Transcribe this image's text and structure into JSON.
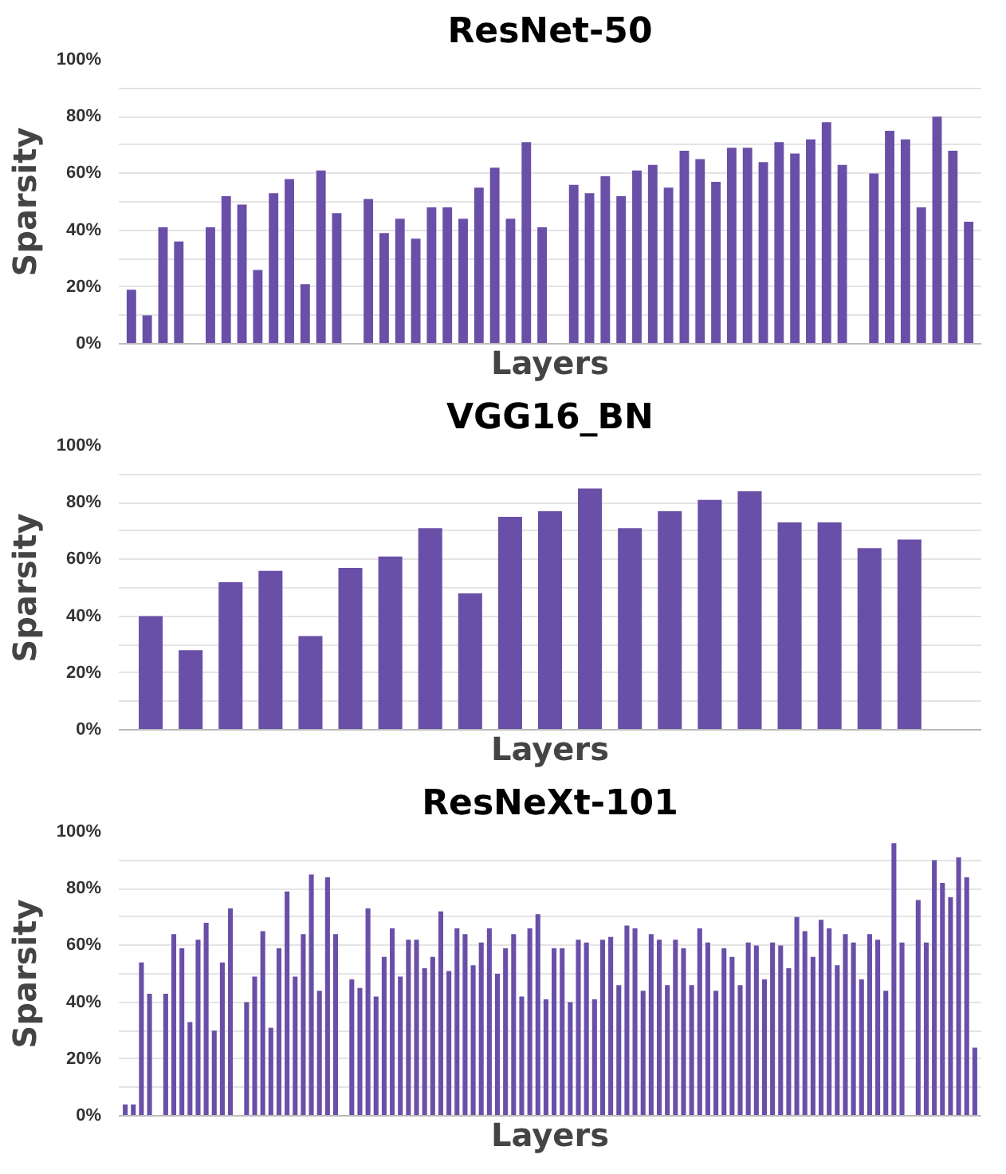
{
  "chart_data": [
    {
      "type": "bar",
      "title": "ResNet-50",
      "xlabel": "Layers",
      "ylabel": "Sparsity",
      "color": "#6a4fa8",
      "grid": "y",
      "ylim": [
        0,
        100
      ],
      "yticks": [
        {
          "value": 0,
          "label": "0%"
        },
        {
          "value": 10,
          "label": null
        },
        {
          "value": 20,
          "label": "20%"
        },
        {
          "value": 30,
          "label": null
        },
        {
          "value": 40,
          "label": "40%"
        },
        {
          "value": 50,
          "label": null
        },
        {
          "value": 60,
          "label": "60%"
        },
        {
          "value": 70,
          "label": null
        },
        {
          "value": 80,
          "label": "80%"
        },
        {
          "value": 90,
          "label": null
        },
        {
          "value": 100,
          "label": "100%"
        }
      ],
      "categories": [
        null,
        null,
        null,
        null,
        null,
        null,
        null,
        null,
        null,
        null,
        null,
        null,
        null,
        null,
        null,
        null,
        null,
        null,
        null,
        null,
        null,
        null,
        null,
        null,
        null,
        null,
        null,
        null,
        null,
        null,
        null,
        null,
        null,
        null,
        null,
        null,
        null,
        null,
        null,
        null,
        null,
        null,
        null,
        null,
        null,
        null,
        null,
        null,
        null,
        null,
        null,
        null,
        null,
        null
      ],
      "values": [
        19,
        10,
        41,
        36,
        null,
        41,
        52,
        49,
        26,
        53,
        58,
        21,
        61,
        46,
        null,
        51,
        39,
        44,
        37,
        48,
        48,
        44,
        55,
        62,
        44,
        71,
        41,
        null,
        56,
        53,
        59,
        52,
        61,
        63,
        55,
        68,
        65,
        57,
        69,
        69,
        64,
        71,
        67,
        72,
        78,
        63,
        null,
        60,
        75,
        72,
        48,
        80,
        68,
        43
      ]
    },
    {
      "type": "bar",
      "title": "VGG16_BN",
      "xlabel": "Layers",
      "ylabel": "Sparsity",
      "color": "#6a4fa8",
      "grid": "y",
      "ylim": [
        0,
        100
      ],
      "yticks": [
        {
          "value": 0,
          "label": "0%"
        },
        {
          "value": 10,
          "label": null
        },
        {
          "value": 20,
          "label": "20%"
        },
        {
          "value": 30,
          "label": null
        },
        {
          "value": 40,
          "label": "40%"
        },
        {
          "value": 50,
          "label": null
        },
        {
          "value": 60,
          "label": "60%"
        },
        {
          "value": 70,
          "label": null
        },
        {
          "value": 80,
          "label": "80%"
        },
        {
          "value": 90,
          "label": null
        },
        {
          "value": 100,
          "label": "100%"
        }
      ],
      "categories": [
        null,
        null,
        null,
        null,
        null,
        null,
        null,
        null,
        null,
        null,
        null,
        null,
        null,
        null,
        null,
        null,
        null,
        null,
        null,
        null,
        null
      ],
      "values": [
        40,
        28,
        52,
        56,
        33,
        57,
        61,
        71,
        48,
        75,
        77,
        85,
        71,
        77,
        81,
        84,
        73,
        73,
        64,
        67,
        null
      ]
    },
    {
      "type": "bar",
      "title": "ResNeXt-101",
      "xlabel": "Layers",
      "ylabel": "Sparsity",
      "color": "#6a4fa8",
      "grid": "y",
      "ylim": [
        0,
        100
      ],
      "yticks": [
        {
          "value": 0,
          "label": "0%"
        },
        {
          "value": 10,
          "label": null
        },
        {
          "value": 20,
          "label": "20%"
        },
        {
          "value": 30,
          "label": null
        },
        {
          "value": 40,
          "label": "40%"
        },
        {
          "value": 50,
          "label": null
        },
        {
          "value": 60,
          "label": "60%"
        },
        {
          "value": 70,
          "label": null
        },
        {
          "value": 80,
          "label": "80%"
        },
        {
          "value": 90,
          "label": null
        },
        {
          "value": 100,
          "label": "100%"
        }
      ],
      "categories": [
        null,
        null,
        null,
        null,
        null,
        null,
        null,
        null,
        null,
        null,
        null,
        null,
        null,
        null,
        null,
        null,
        null,
        null,
        null,
        null,
        null,
        null,
        null,
        null,
        null,
        null,
        null,
        null,
        null,
        null,
        null,
        null,
        null,
        null,
        null,
        null,
        null,
        null,
        null,
        null,
        null,
        null,
        null,
        null,
        null,
        null,
        null,
        null,
        null,
        null,
        null,
        null,
        null,
        null,
        null,
        null,
        null,
        null,
        null,
        null,
        null,
        null,
        null,
        null,
        null,
        null,
        null,
        null,
        null,
        null,
        null,
        null,
        null,
        null,
        null,
        null,
        null,
        null,
        null,
        null,
        null,
        null,
        null,
        null,
        null,
        null,
        null,
        null,
        null,
        null,
        null,
        null,
        null,
        null,
        null,
        null,
        null,
        null,
        null,
        null,
        null,
        null,
        null,
        null,
        null,
        null
      ],
      "values": [
        4,
        4,
        54,
        43,
        null,
        43,
        64,
        59,
        33,
        62,
        68,
        30,
        54,
        73,
        null,
        40,
        49,
        65,
        31,
        59,
        79,
        49,
        64,
        85,
        44,
        84,
        64,
        null,
        48,
        45,
        73,
        42,
        56,
        66,
        49,
        62,
        62,
        52,
        56,
        72,
        51,
        66,
        64,
        53,
        61,
        66,
        50,
        59,
        64,
        42,
        66,
        71,
        41,
        59,
        59,
        40,
        62,
        61,
        41,
        62,
        63,
        46,
        67,
        66,
        44,
        64,
        62,
        46,
        62,
        59,
        46,
        66,
        61,
        44,
        59,
        56,
        46,
        61,
        60,
        48,
        61,
        60,
        52,
        70,
        65,
        56,
        69,
        66,
        53,
        64,
        61,
        48,
        64,
        62,
        44,
        96,
        61,
        null,
        76,
        61,
        90,
        82,
        77,
        91,
        84,
        24
      ]
    }
  ]
}
